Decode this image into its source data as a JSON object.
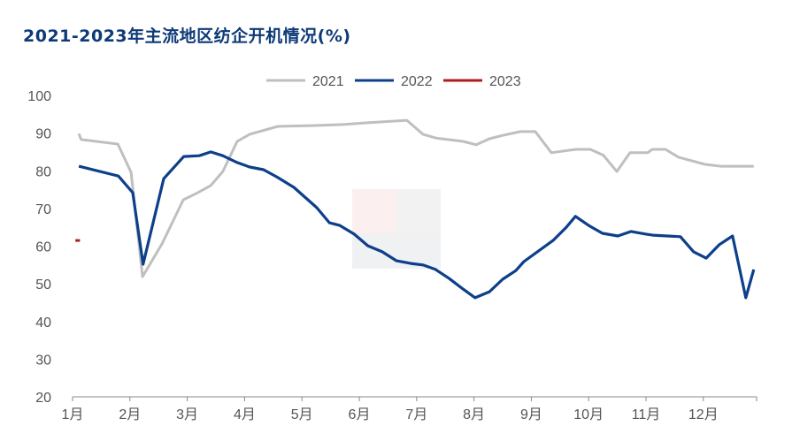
{
  "chart_data": {
    "type": "line",
    "title": "2021-2023年主流地区纺企开机情况(%)",
    "xlabel": "",
    "ylabel": "",
    "ylim": [
      20,
      100
    ],
    "yticks": [
      100,
      90,
      80,
      70,
      60,
      50,
      40,
      30,
      20
    ],
    "xlim": [
      1,
      12.9
    ],
    "xtick_labels": [
      "1月",
      "2月",
      "3月",
      "4月",
      "5月",
      "6月",
      "7月",
      "8月",
      "9月",
      "10月",
      "11月",
      "12月"
    ],
    "legend_position": "top-center",
    "grid": false,
    "series": [
      {
        "name": "2021",
        "color": "#bfbfbf",
        "x": [
          1.11,
          1.15,
          1.79,
          2.02,
          2.22,
          2.56,
          2.93,
          3.16,
          3.41,
          3.62,
          3.87,
          4.09,
          4.58,
          5.17,
          5.75,
          6.09,
          6.83,
          7.11,
          7.34,
          7.81,
          8.04,
          8.27,
          8.5,
          8.81,
          9.07,
          9.35,
          9.78,
          10.03,
          10.26,
          10.49,
          10.72,
          11.03,
          11.11,
          11.34,
          11.57,
          12.03,
          12.31,
          12.88
        ],
        "y": [
          89.9,
          88.3,
          87.1,
          79.6,
          51.9,
          60.6,
          72.3,
          74.0,
          76.1,
          79.8,
          87.8,
          89.7,
          91.8,
          92.0,
          92.3,
          92.7,
          93.4,
          89.7,
          88.7,
          87.8,
          86.9,
          88.5,
          89.4,
          90.4,
          90.4,
          84.8,
          85.7,
          85.7,
          84.1,
          79.8,
          84.8,
          84.8,
          85.7,
          85.7,
          83.6,
          81.7,
          81.2,
          81.2
        ]
      },
      {
        "name": "2022",
        "color": "#0d3f8a",
        "x": [
          1.11,
          1.8,
          2.05,
          2.23,
          2.59,
          2.94,
          3.21,
          3.41,
          3.62,
          3.87,
          4.09,
          4.33,
          4.56,
          4.86,
          5.26,
          5.48,
          5.66,
          5.91,
          6.15,
          6.4,
          6.65,
          6.9,
          7.11,
          7.33,
          7.57,
          7.81,
          8.02,
          8.27,
          8.5,
          8.73,
          8.87,
          9.38,
          9.61,
          9.77,
          10.0,
          10.24,
          10.51,
          10.74,
          11.0,
          11.12,
          11.6,
          11.83,
          12.05,
          12.28,
          12.51,
          12.74,
          12.88
        ],
        "y": [
          81.2,
          78.6,
          74.2,
          55.2,
          77.9,
          83.8,
          84.0,
          85.0,
          84.0,
          82.2,
          81.0,
          80.3,
          78.4,
          75.6,
          70.2,
          66.2,
          65.5,
          63.2,
          60.1,
          58.5,
          56.1,
          55.4,
          55.0,
          53.8,
          51.4,
          48.6,
          46.3,
          47.9,
          51.2,
          53.5,
          55.9,
          61.5,
          65.0,
          67.9,
          65.5,
          63.4,
          62.7,
          63.9,
          63.2,
          62.9,
          62.5,
          58.5,
          56.8,
          60.4,
          62.7,
          46.3,
          53.8
        ]
      },
      {
        "name": "2023",
        "color": "#b01c1c",
        "x": [
          1.05,
          1.13
        ],
        "y": [
          61.5,
          61.5
        ]
      }
    ]
  }
}
